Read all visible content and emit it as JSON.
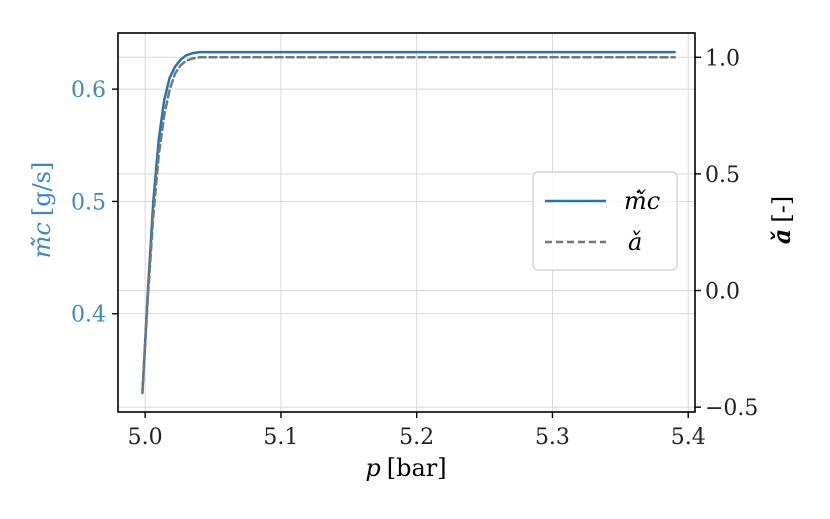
{
  "chart_data": {
    "type": "line",
    "title": "",
    "xlabel": {
      "symbol": "p",
      "unit": "[bar]"
    },
    "ylabel_left": {
      "symbol": "ṁ̌c",
      "unit": "[g/s]"
    },
    "ylabel_right": {
      "symbol": "ǎ",
      "unit": "[-]"
    },
    "xlim": [
      4.98,
      5.405
    ],
    "ylim_left": [
      0.3125,
      0.65
    ],
    "ylim_right": [
      -0.5208,
      1.1042
    ],
    "xticks": [
      5.0,
      5.1,
      5.2,
      5.3,
      5.4
    ],
    "xtick_labels": [
      "5.0",
      "5.1",
      "5.2",
      "5.3",
      "5.4"
    ],
    "yticks_left": [
      0.4,
      0.5,
      0.6
    ],
    "ytick_labels_left": [
      "0.4",
      "0.5",
      "0.6"
    ],
    "yticks_right": [
      -0.5,
      0.0,
      0.5,
      1.0
    ],
    "ytick_labels_right": [
      "−0.5",
      "0.0",
      "0.5",
      "1.0"
    ],
    "grid": true,
    "legend_position": "center-right",
    "series": [
      {
        "name": "ṁ̌c",
        "axis": "left",
        "color": "#1f77b4",
        "style": "solid",
        "x": [
          4.998,
          5.002,
          5.006,
          5.01,
          5.014,
          5.018,
          5.022,
          5.026,
          5.03,
          5.035,
          5.04,
          5.05,
          5.06,
          5.08,
          5.1,
          5.15,
          5.2,
          5.25,
          5.3,
          5.35,
          5.39
        ],
        "y": [
          0.33,
          0.42,
          0.5,
          0.555,
          0.59,
          0.61,
          0.62,
          0.626,
          0.63,
          0.632,
          0.633,
          0.633,
          0.633,
          0.633,
          0.633,
          0.633,
          0.633,
          0.633,
          0.633,
          0.633,
          0.633
        ]
      },
      {
        "name": "ǎ",
        "axis": "right",
        "color": "#777777",
        "style": "dashed",
        "x": [
          4.998,
          5.002,
          5.006,
          5.01,
          5.014,
          5.018,
          5.022,
          5.026,
          5.03,
          5.035,
          5.04,
          5.05,
          5.06,
          5.08,
          5.1,
          5.15,
          5.2,
          5.25,
          5.3,
          5.35,
          5.39
        ],
        "y": [
          -0.44,
          -0.03,
          0.32,
          0.58,
          0.75,
          0.86,
          0.93,
          0.965,
          0.985,
          0.995,
          1.0,
          1.0,
          1.0,
          1.0,
          1.0,
          1.0,
          1.0,
          1.0,
          1.0,
          1.0,
          1.0
        ]
      }
    ],
    "colors": {
      "left_axis_text": "#3a8ac4",
      "axis": "#000000",
      "grid": "#d9d9d9"
    }
  }
}
